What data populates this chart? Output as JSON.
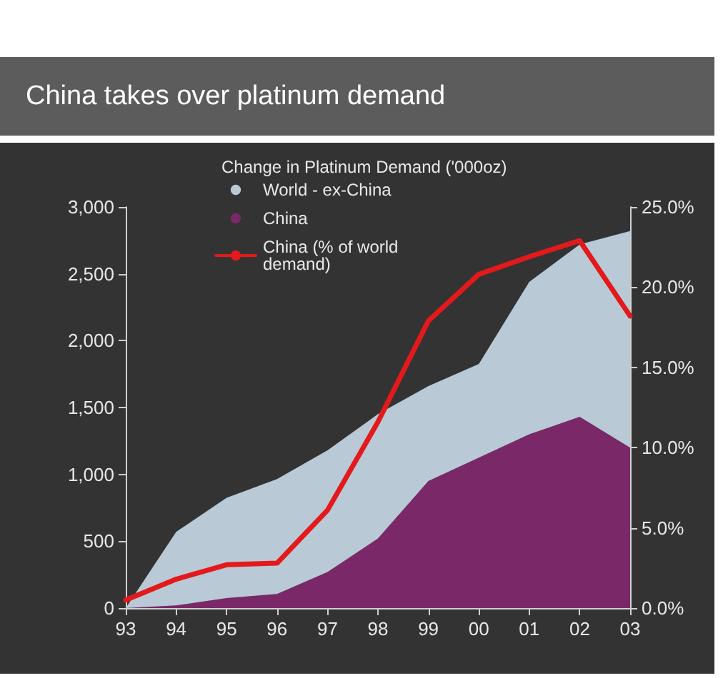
{
  "chart_data": {
    "type": "area",
    "title": "China takes over platinum demand",
    "legend_title": "Change in Platinum Demand ('000oz)",
    "categories": [
      "93",
      "94",
      "95",
      "96",
      "97",
      "98",
      "99",
      "00",
      "01",
      "02",
      "03"
    ],
    "stacked": true,
    "legend": "top",
    "marker": "none",
    "series": [
      {
        "name": "World - ex-China",
        "color": "#b9c9d6",
        "values": [
          0,
          550,
          750,
          860,
          910,
          930,
          710,
          700,
          1140,
          1290,
          1620
        ]
      },
      {
        "name": "China",
        "color": "#7b2869",
        "values": [
          0,
          20,
          75,
          105,
          270,
          520,
          950,
          1125,
          1300,
          1430,
          1200
        ]
      },
      {
        "name": "China (% of world demand)",
        "type": "line",
        "axis": "y2",
        "color": "#e3191c",
        "values": [
          0.5,
          1.8,
          2.7,
          2.8,
          6.1,
          11.6,
          17.9,
          20.8,
          21.9,
          22.9,
          18.2
        ]
      }
    ],
    "ylim": [
      0,
      3000
    ],
    "yticks": [
      {
        "value": 0,
        "label": "0"
      },
      {
        "value": 500,
        "label": "500"
      },
      {
        "value": 1000,
        "label": "1,000"
      },
      {
        "value": 1500,
        "label": "1,500"
      },
      {
        "value": 2000,
        "label": "2,000"
      },
      {
        "value": 2500,
        "label": "2,500"
      },
      {
        "value": 3000,
        "label": "3,000"
      }
    ],
    "y2lim": [
      0,
      25
    ],
    "y2ticks": [
      {
        "value": 0,
        "label": "0.0%"
      },
      {
        "value": 5,
        "label": "5.0%"
      },
      {
        "value": 10,
        "label": "10.0%"
      },
      {
        "value": 15,
        "label": "15.0%"
      },
      {
        "value": 20,
        "label": "20.0%"
      },
      {
        "value": 25,
        "label": "25.0%"
      }
    ]
  }
}
